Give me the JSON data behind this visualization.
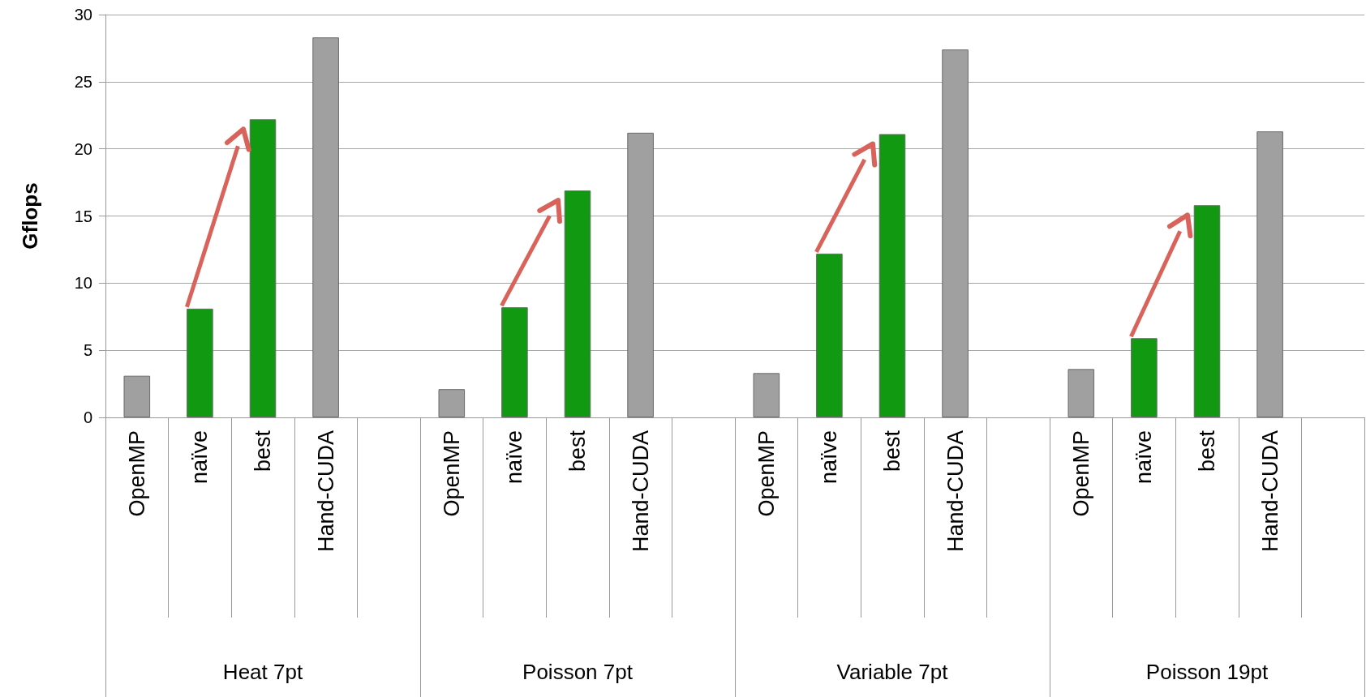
{
  "chart_data": {
    "type": "bar",
    "ylabel": "Gflops",
    "categories": [
      "OpenMP",
      "naïve",
      "best",
      "Hand-CUDA",
      null,
      "OpenMP",
      "naïve",
      "best",
      "Hand-CUDA",
      null,
      "OpenMP",
      "naïve",
      "best",
      "Hand-CUDA",
      null,
      "OpenMP",
      "naïve",
      "best",
      "Hand-CUDA",
      null
    ],
    "values": [
      3.1,
      8.1,
      22.2,
      28.3,
      null,
      2.1,
      8.2,
      16.9,
      21.2,
      null,
      3.3,
      12.2,
      21.1,
      27.4,
      null,
      3.6,
      5.9,
      15.8,
      21.3,
      null
    ],
    "colors": [
      "#a0a0a0",
      "#129912",
      "#129912",
      "#a0a0a0",
      null,
      "#a0a0a0",
      "#129912",
      "#129912",
      "#a0a0a0",
      null,
      "#a0a0a0",
      "#129912",
      "#129912",
      "#a0a0a0",
      null,
      "#a0a0a0",
      "#129912",
      "#129912",
      "#a0a0a0",
      null
    ],
    "annotations": [
      "Heat 7pt",
      "Poisson 7pt",
      "Variable 7pt",
      "Poisson 19pt"
    ],
    "ylim": [
      0,
      30
    ],
    "yticks": [
      0,
      5,
      10,
      15,
      20,
      25,
      30
    ],
    "grid": "y"
  }
}
